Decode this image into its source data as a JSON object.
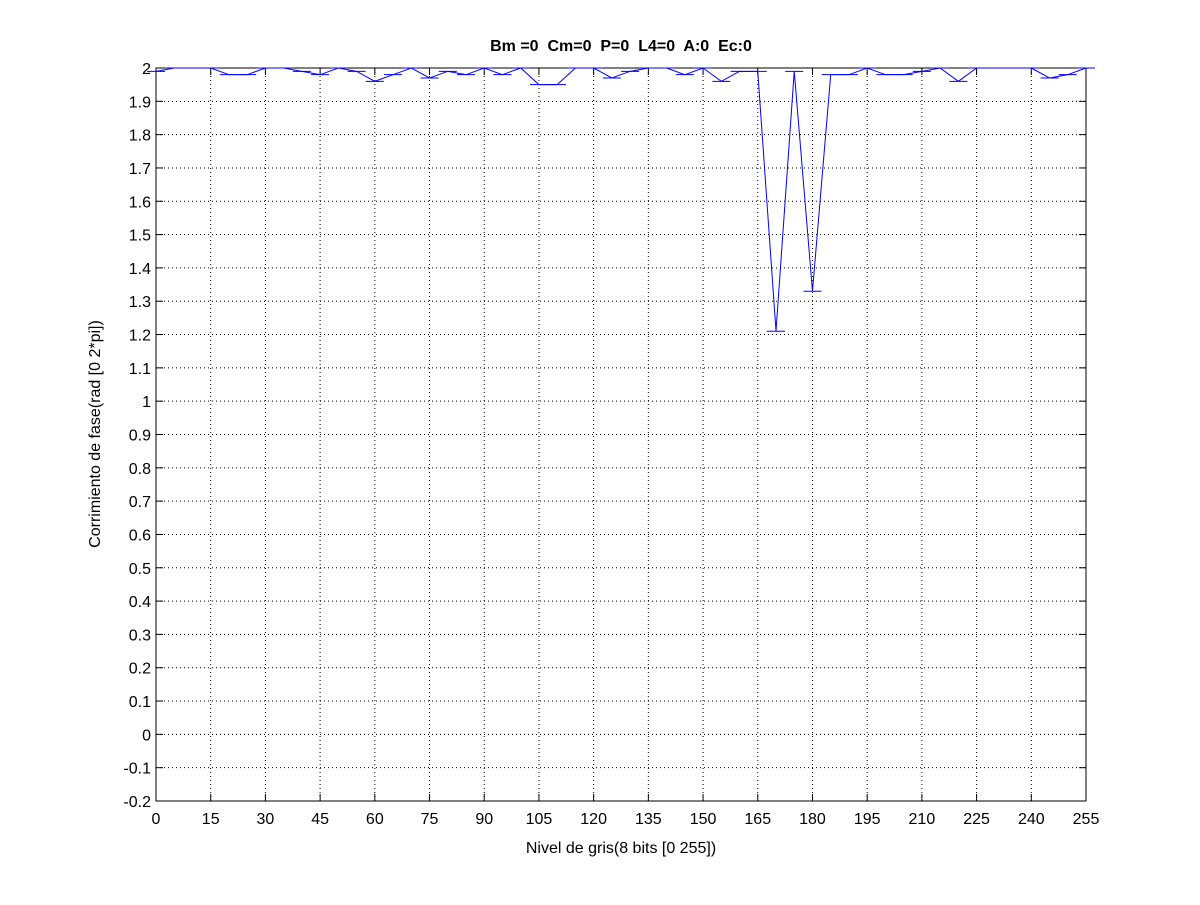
{
  "figure": {
    "background": "#ffffff"
  },
  "chart_data": {
    "type": "line",
    "title": "Bm =0  Cm=0  P=0  L4=0  A:0  Ec:0",
    "xlabel": "Nivel de gris(8 bits [0 255])",
    "ylabel": "Corrimiento de fase(rad [0 2*pi])",
    "xlim": [
      0,
      255
    ],
    "ylim": [
      -0.2,
      2
    ],
    "xticks": [
      0,
      15,
      30,
      45,
      60,
      75,
      90,
      105,
      120,
      135,
      150,
      165,
      180,
      195,
      210,
      225,
      240,
      255
    ],
    "yticks": [
      -0.2,
      -0.1,
      0,
      0.1,
      0.2,
      0.3,
      0.4,
      0.5,
      0.6,
      0.7,
      0.8,
      0.9,
      1,
      1.1,
      1.2,
      1.3,
      1.4,
      1.5,
      1.6,
      1.7,
      1.8,
      1.9,
      2
    ],
    "grid": true,
    "grid_style": "dotted",
    "line_color": "#0000ff",
    "axis_color": "#000000",
    "series": [
      {
        "x": [
          0,
          5,
          10,
          15,
          20,
          25,
          30,
          35,
          40,
          45,
          50,
          55,
          60,
          65,
          70,
          75,
          80,
          85,
          90,
          95,
          100,
          105,
          110,
          115,
          120,
          125,
          130,
          135,
          140,
          145,
          150,
          155,
          160,
          165,
          170,
          175,
          180,
          185,
          190,
          195,
          200,
          205,
          210,
          215,
          220,
          225,
          230,
          235,
          240,
          245,
          250,
          255
        ],
        "y": [
          1.99,
          2.0,
          2.0,
          2.0,
          1.98,
          1.98,
          2.0,
          2.0,
          1.99,
          1.98,
          2.0,
          1.99,
          1.96,
          1.98,
          2.0,
          1.97,
          1.99,
          1.98,
          2.0,
          1.98,
          2.0,
          1.95,
          1.95,
          2.0,
          2.0,
          1.97,
          1.99,
          2.0,
          2.0,
          1.98,
          2.0,
          1.96,
          1.99,
          1.99,
          1.21,
          1.99,
          1.33,
          1.98,
          1.98,
          2.0,
          1.98,
          1.98,
          1.99,
          2.0,
          1.96,
          2.0,
          2.0,
          2.0,
          2.0,
          1.97,
          1.98,
          2.0
        ]
      }
    ]
  }
}
